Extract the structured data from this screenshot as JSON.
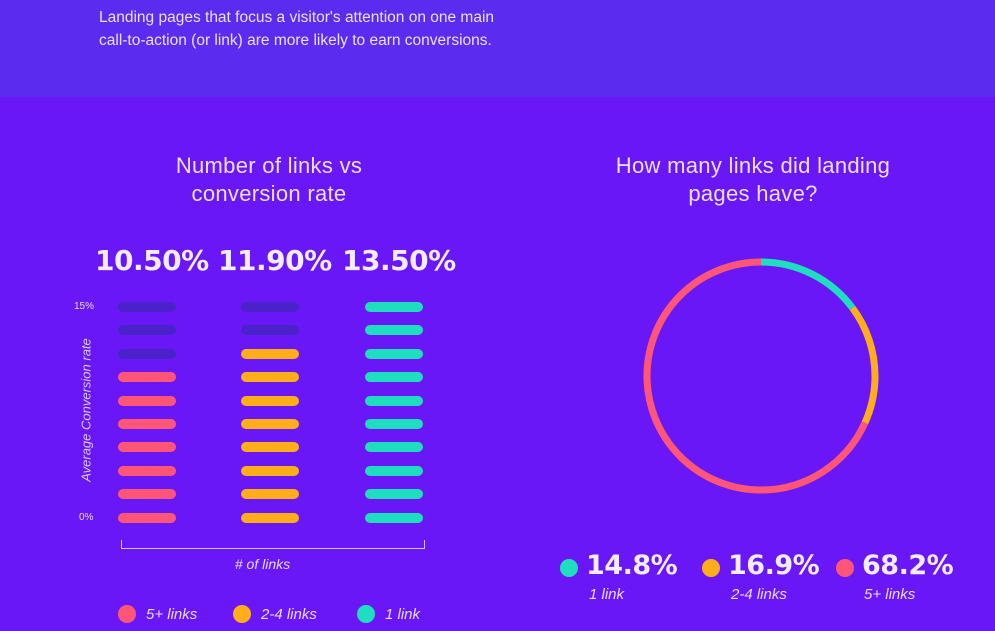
{
  "intro": {
    "line1": "Landing pages that focus a visitor's attention on one main",
    "line2": "call-to-action (or link) are more likely to earn conversions."
  },
  "colors": {
    "background": "#6a17f7",
    "top_band": "#5b2bf0",
    "five_plus": "#ff5677",
    "two_to_four": "#ffad19",
    "one_link": "#1fdec0",
    "empty": "#4b22c9"
  },
  "chart_data": [
    {
      "type": "bar",
      "title_line1": "Number of links vs",
      "title_line2": "conversion rate",
      "categories": [
        "5+ links",
        "2-4 links",
        "1 link"
      ],
      "values": [
        10.5,
        11.9,
        13.5
      ],
      "value_labels": [
        "10.50%",
        "11.90%",
        "13.50%"
      ],
      "filled_segments": [
        7,
        8,
        10
      ],
      "total_segments": 10,
      "colors": [
        "#ff5677",
        "#ffad19",
        "#1fdec0"
      ],
      "ylim": [
        0,
        15
      ],
      "yticks": [
        "15%",
        "0%"
      ],
      "ylabel": "Average Conversion rate",
      "xlabel": "# of links",
      "legend": [
        {
          "label": "5+ links",
          "color": "#ff5677"
        },
        {
          "label": "2-4 links",
          "color": "#ffad19"
        },
        {
          "label": "1 link",
          "color": "#1fdec0"
        }
      ]
    },
    {
      "type": "pie",
      "style": "donut",
      "title_line1": "How many links did landing",
      "title_line2": "pages have?",
      "slices": [
        {
          "label": "1 link",
          "value": 14.8,
          "display": "14.8%",
          "color": "#1fdec0"
        },
        {
          "label": "2-4 links",
          "value": 16.9,
          "display": "16.9%",
          "color": "#ffad19"
        },
        {
          "label": "5+ links",
          "value": 68.2,
          "display": "68.2%",
          "color": "#ff5677"
        }
      ]
    }
  ]
}
